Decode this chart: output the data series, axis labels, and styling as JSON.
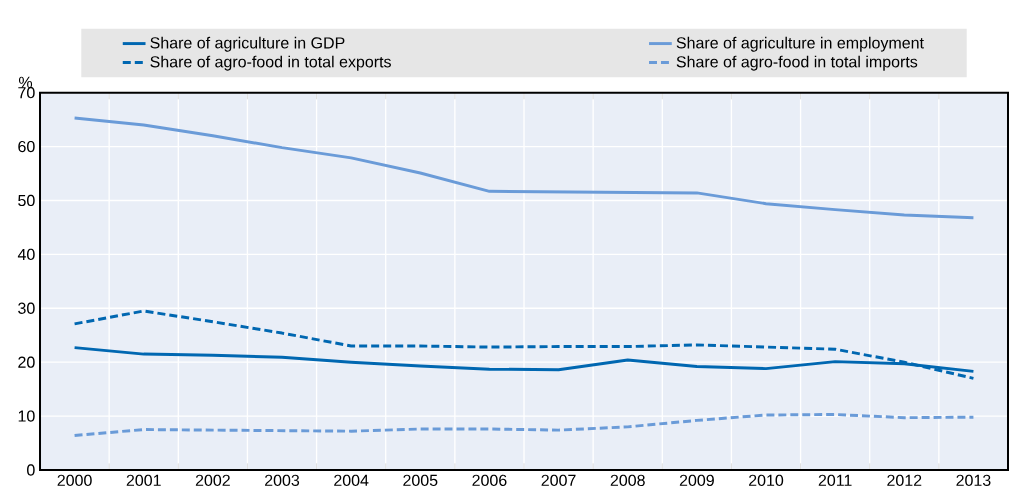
{
  "chart_data": {
    "type": "line",
    "ylabel": "%",
    "categories": [
      "2000",
      "2001",
      "2002",
      "2003",
      "2004",
      "2005",
      "2006",
      "2007",
      "2008",
      "2009",
      "2010",
      "2011",
      "2012",
      "2013"
    ],
    "series": [
      {
        "name": "Share of agriculture in GDP",
        "color": "#0067b1",
        "line_style": "solid",
        "values": [
          22.7,
          21.5,
          21.3,
          20.9,
          20.0,
          19.3,
          18.7,
          18.6,
          20.4,
          19.2,
          18.8,
          20.1,
          19.7,
          18.3
        ]
      },
      {
        "name": "Share of agriculture in employment",
        "color": "#6a9bd8",
        "line_style": "solid",
        "values": [
          65.3,
          64.0,
          62.0,
          59.8,
          57.9,
          55.1,
          51.7,
          51.6,
          51.5,
          51.4,
          49.4,
          48.3,
          47.3,
          46.8
        ]
      },
      {
        "name": "Share of agro-food in total exports",
        "color": "#0067b1",
        "line_style": "dashed",
        "values": [
          27.1,
          29.5,
          27.5,
          25.4,
          23.0,
          23.0,
          22.8,
          22.9,
          22.9,
          23.2,
          22.8,
          22.4,
          20.0,
          17.0
        ]
      },
      {
        "name": "Share of agro-food in total imports",
        "color": "#6a9bd8",
        "line_style": "dashed",
        "values": [
          6.4,
          7.5,
          7.4,
          7.3,
          7.2,
          7.6,
          7.6,
          7.4,
          8.0,
          9.2,
          10.2,
          10.3,
          9.7,
          9.8
        ]
      }
    ],
    "ylim": [
      0,
      70
    ],
    "yticks": [
      0,
      10,
      20,
      30,
      40,
      50,
      60,
      70
    ],
    "grid": true,
    "legend": "top",
    "marker": "none"
  }
}
